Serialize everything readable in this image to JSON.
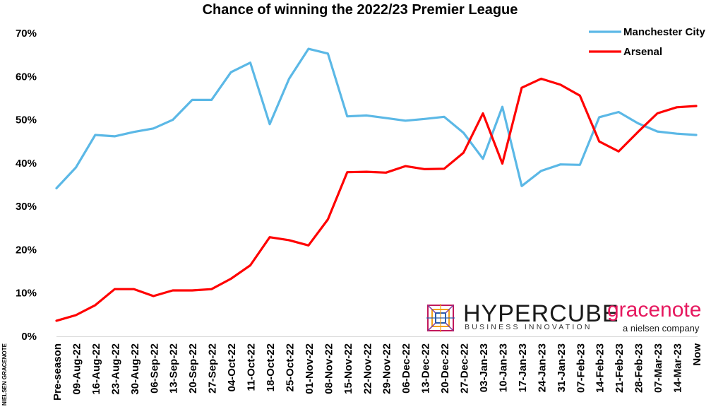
{
  "chart_data": {
    "type": "line",
    "title": "Chance of winning the 2022/23 Premier League",
    "xlabel": "",
    "ylabel": "",
    "ylim": [
      0,
      70
    ],
    "yticks": [
      "0%",
      "10%",
      "20%",
      "30%",
      "40%",
      "50%",
      "60%",
      "70%"
    ],
    "grid": false,
    "legend_position": "top-right",
    "categories": [
      "Pre-season",
      "09-Aug-22",
      "16-Aug-22",
      "23-Aug-22",
      "30-Aug-22",
      "06-Sep-22",
      "13-Sep-22",
      "20-Sep-22",
      "27-Sep-22",
      "04-Oct-22",
      "11-Oct-22",
      "18-Oct-22",
      "25-Oct-22",
      "01-Nov-22",
      "08-Nov-22",
      "15-Nov-22",
      "22-Nov-22",
      "29-Nov-22",
      "06-Dec-22",
      "13-Dec-22",
      "20-Dec-22",
      "27-Dec-22",
      "03-Jan-23",
      "10-Jan-23",
      "17-Jan-23",
      "24-Jan-23",
      "31-Jan-23",
      "07-Feb-23",
      "14-Feb-23",
      "21-Feb-23",
      "28-Feb-23",
      "07-Mar-23",
      "14-Mar-23",
      "Now"
    ],
    "series": [
      {
        "name": "Manchester City",
        "color": "#5bb8e6",
        "values": [
          34.2,
          39,
          46.5,
          46.2,
          47.2,
          48,
          50,
          54.6,
          54.6,
          61,
          63.2,
          49,
          59.5,
          66.4,
          65.3,
          50.8,
          51,
          50.4,
          49.8,
          50.2,
          50.7,
          47,
          41,
          53,
          34.7,
          38.2,
          39.7,
          39.6,
          50.6,
          51.8,
          49.2,
          47.3,
          46.8,
          46.5
        ]
      },
      {
        "name": "Arsenal",
        "color": "#ff0000",
        "values": [
          3.6,
          4.9,
          7.2,
          10.9,
          10.9,
          9.3,
          10.6,
          10.6,
          10.9,
          13.3,
          16.4,
          22.9,
          22.2,
          21,
          27,
          37.9,
          38,
          37.8,
          39.3,
          38.6,
          38.7,
          42.4,
          51.5,
          39.9,
          57.4,
          59.5,
          58.1,
          55.6,
          45,
          42.7,
          47.2,
          51.5,
          52.9,
          53.2
        ]
      }
    ]
  },
  "logos": {
    "hypercube_name": "HYPERCUBE",
    "hypercube_tagline": "BUSINESS INNOVATION",
    "gracenote_name": "gracenote",
    "gracenote_tagline": "a nielsen company"
  },
  "credit": "NIELSEN GRACENOTE"
}
